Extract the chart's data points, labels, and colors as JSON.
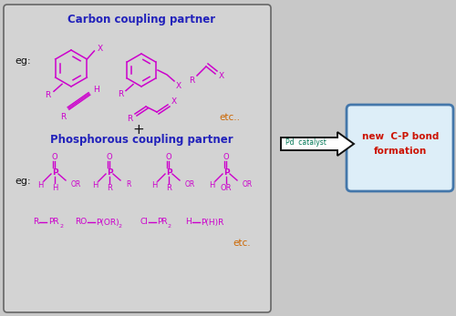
{
  "bg_color": "#c8c8c8",
  "left_box_color": "#d3d3d3",
  "left_box_edge": "#666666",
  "right_box_color": "#ddeef8",
  "right_box_edge": "#4477aa",
  "magenta": "#cc00cc",
  "blue_title": "#2222bb",
  "orange": "#cc6600",
  "green": "#007755",
  "red": "#cc1100",
  "black": "#111111",
  "white": "#ffffff",
  "title1": "Carbon coupling partner",
  "title2": "Phosphorous coupling partner",
  "eg": "eg:",
  "etc1": "etc..",
  "etc2": "etc.",
  "pd_label": "Pd  catalyst",
  "plus": "+",
  "fig_width": 5.0,
  "fig_height": 3.47,
  "dpi": 100
}
